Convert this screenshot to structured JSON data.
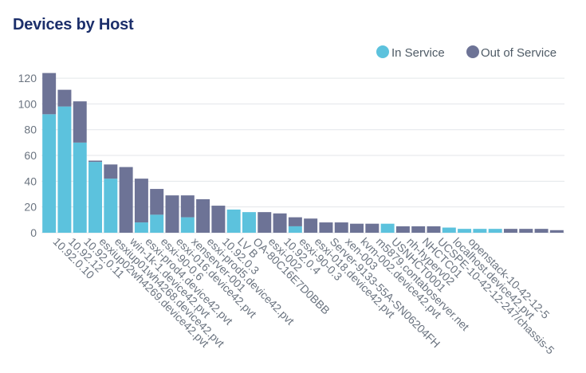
{
  "chart_data": {
    "type": "bar",
    "stacked": true,
    "title": "Devices by Host",
    "categories": [
      "10.92.0.10",
      "10.92.12",
      "10.92.0.11",
      "esxiup02wh4269.device42.pvt",
      "esxiup01wh4268.device42.pvt",
      "win-1k-1.device42.pvt",
      "esxi-prod4.device42.pvt",
      "esxi-90-0.6",
      "esxi-016.device42.pvt",
      "xenserver-001",
      "esxi-prod5.device42.pvt",
      "10.92.0.3",
      "LV B",
      "OA-80C16E7D0BBB",
      "esxi-002",
      "10.92.0.4",
      "esxi-90-0.3",
      "esxi-018.device42.pvt",
      "Server-9133-55A-SN06204FH",
      "xen-003",
      "kvm-002.device42.pvt",
      "m5879.contaboserver.net",
      "USNHCT0001",
      "nh-hyperv02",
      "NHCTC01",
      "UCSPE-10-42-12-247/chassis-5",
      "localhost.device42.pvt",
      "openstack-10-42-12-5",
      "",
      "",
      "",
      "",
      "",
      ""
    ],
    "series": [
      {
        "name": "In Service",
        "color": "#5cc2dd",
        "values": [
          92,
          98,
          70,
          55,
          42,
          0,
          8,
          14,
          0,
          12,
          0,
          0,
          18,
          16,
          0,
          0,
          5,
          0,
          0,
          0,
          0,
          0,
          7,
          0,
          0,
          0,
          4,
          3,
          3,
          3,
          0,
          0,
          0,
          0
        ]
      },
      {
        "name": "Out of Service",
        "color": "#6d7396",
        "values": [
          32,
          13,
          32,
          1,
          11,
          51,
          34,
          20,
          29,
          17,
          26,
          21,
          0,
          0,
          16,
          15,
          7,
          11,
          8,
          8,
          7,
          7,
          0,
          5,
          5,
          5,
          0,
          0,
          0,
          0,
          3,
          3,
          3,
          2
        ]
      }
    ],
    "ylim": [
      0,
      125
    ],
    "yticks": [
      0,
      20,
      40,
      60,
      80,
      100,
      120
    ],
    "grid": true,
    "legend": "top-right"
  }
}
